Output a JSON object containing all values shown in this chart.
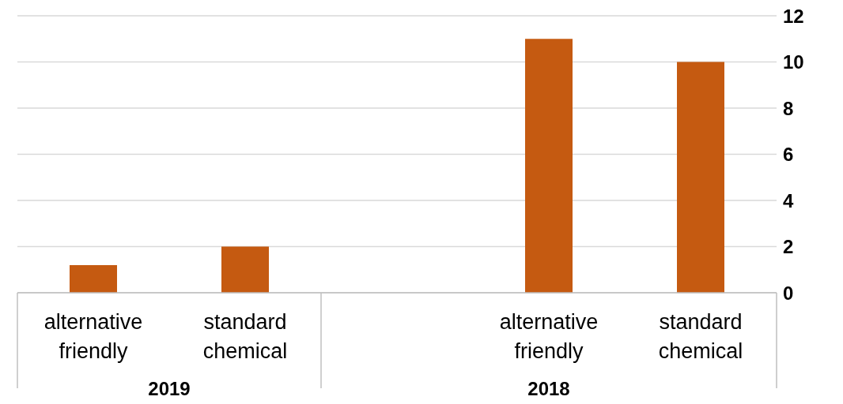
{
  "chart_data": {
    "type": "bar",
    "categories": [
      "alternative friendly",
      "standard chemical",
      null,
      "alternative friendly",
      "standard chemical"
    ],
    "values": [
      1.2,
      2.0,
      null,
      11,
      10
    ],
    "color": "#c55a11",
    "ylim": [
      0,
      12
    ],
    "yticks": [
      0,
      2,
      4,
      6,
      8,
      10,
      12
    ],
    "grid": "y",
    "legend": false,
    "annotations": [
      "2019",
      "2018"
    ]
  }
}
